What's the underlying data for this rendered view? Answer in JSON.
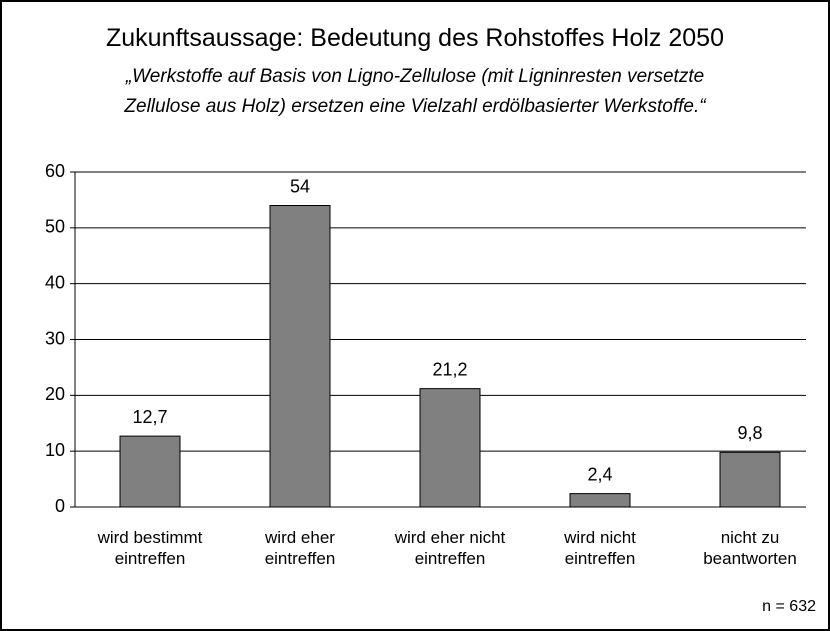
{
  "chart_data": {
    "type": "bar",
    "title": "Zukunftsaussage: Bedeutung des Rohstoffes Holz 2050",
    "subtitle": "„Werkstoffe auf Basis von Ligno-Zellulose (mit Ligninresten versetzte\nZellulose aus Holz) ersetzen eine Vielzahl erdölbasierter Werkstoffe.“",
    "categories": [
      "wird bestimmt\neintreffen",
      "wird eher\neintreffen",
      "wird eher nicht\neintreffen",
      "wird nicht\neintreffen",
      "nicht zu\nbeantworten"
    ],
    "values": [
      12.7,
      54,
      21.2,
      2.4,
      9.8
    ],
    "value_labels": [
      "12,7",
      "54",
      "21,2",
      "2,4",
      "9,8"
    ],
    "color": "#808080",
    "ylim": [
      0,
      60
    ],
    "yticks": [
      0,
      10,
      20,
      30,
      40,
      50,
      60
    ],
    "grid": true,
    "annotation": "n = 632"
  }
}
